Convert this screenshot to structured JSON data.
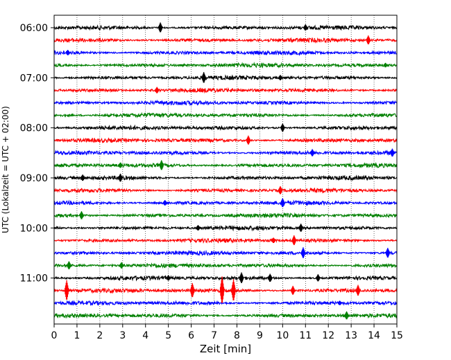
{
  "chart_data": {
    "type": "line",
    "title": "",
    "xlabel": "Zeit  [min]",
    "ylabel": "UTC (Lokalzeit = UTC + 02:00)",
    "xlim": [
      0,
      15
    ],
    "x_ticks": [
      "0",
      "1",
      "2",
      "3",
      "4",
      "5",
      "6",
      "7",
      "8",
      "9",
      "10",
      "11",
      "12",
      "13",
      "14",
      "15"
    ],
    "y_tick_labels": [
      "06:00",
      "07:00",
      "08:00",
      "09:00",
      "10:00",
      "11:00"
    ],
    "y_tick_rows": [
      0,
      4,
      8,
      12,
      16,
      20
    ],
    "row_count": 24,
    "row_interval_minutes": 15,
    "start_time": "06:00",
    "row_colors": [
      "#000000",
      "#ff0000",
      "#0000ff",
      "#008000"
    ],
    "vertical_grid": "dotted",
    "events": [
      {
        "row": 0,
        "x": 4.65,
        "amp": 0.55
      },
      {
        "row": 0,
        "x": 11.0,
        "amp": 0.35
      },
      {
        "row": 1,
        "x": 13.75,
        "amp": 0.5
      },
      {
        "row": 2,
        "x": 0.6,
        "amp": 0.3
      },
      {
        "row": 3,
        "x": 14.5,
        "amp": 0.25
      },
      {
        "row": 4,
        "x": 6.55,
        "amp": 0.6
      },
      {
        "row": 4,
        "x": 9.9,
        "amp": 0.3
      },
      {
        "row": 5,
        "x": 4.5,
        "amp": 0.35
      },
      {
        "row": 8,
        "x": 10.0,
        "amp": 0.45
      },
      {
        "row": 9,
        "x": 8.5,
        "amp": 0.5
      },
      {
        "row": 10,
        "x": 11.3,
        "amp": 0.4
      },
      {
        "row": 10,
        "x": 14.8,
        "amp": 0.45
      },
      {
        "row": 11,
        "x": 4.7,
        "amp": 0.55
      },
      {
        "row": 11,
        "x": 2.9,
        "amp": 0.3
      },
      {
        "row": 12,
        "x": 1.25,
        "amp": 0.35
      },
      {
        "row": 12,
        "x": 2.9,
        "amp": 0.45
      },
      {
        "row": 13,
        "x": 9.9,
        "amp": 0.45
      },
      {
        "row": 14,
        "x": 4.85,
        "amp": 0.3
      },
      {
        "row": 14,
        "x": 10.0,
        "amp": 0.5
      },
      {
        "row": 15,
        "x": 1.2,
        "amp": 0.45
      },
      {
        "row": 16,
        "x": 6.3,
        "amp": 0.3
      },
      {
        "row": 16,
        "x": 10.8,
        "amp": 0.45
      },
      {
        "row": 17,
        "x": 10.5,
        "amp": 0.55
      },
      {
        "row": 17,
        "x": 9.6,
        "amp": 0.3
      },
      {
        "row": 18,
        "x": 10.9,
        "amp": 0.6
      },
      {
        "row": 18,
        "x": 14.6,
        "amp": 0.55
      },
      {
        "row": 19,
        "x": 0.65,
        "amp": 0.45
      },
      {
        "row": 19,
        "x": 2.95,
        "amp": 0.35
      },
      {
        "row": 20,
        "x": 8.2,
        "amp": 0.6
      },
      {
        "row": 20,
        "x": 9.45,
        "amp": 0.45
      },
      {
        "row": 20,
        "x": 11.55,
        "amp": 0.4
      },
      {
        "row": 20,
        "x": 5.0,
        "amp": 0.3
      },
      {
        "row": 21,
        "x": 0.55,
        "amp": 1.1
      },
      {
        "row": 21,
        "x": 6.05,
        "amp": 0.8
      },
      {
        "row": 21,
        "x": 7.35,
        "amp": 1.5
      },
      {
        "row": 21,
        "x": 7.85,
        "amp": 1.2
      },
      {
        "row": 21,
        "x": 10.45,
        "amp": 0.5
      },
      {
        "row": 21,
        "x": 13.3,
        "amp": 0.6
      },
      {
        "row": 22,
        "x": 12.5,
        "amp": 0.25
      },
      {
        "row": 23,
        "x": 12.8,
        "amp": 0.45
      }
    ]
  }
}
